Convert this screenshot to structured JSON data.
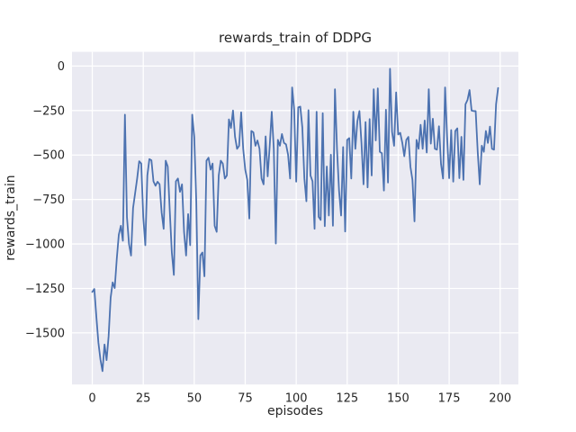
{
  "figure": {
    "background": "#ffffff",
    "plot_background": "#eaeaf2",
    "grid_color": "#ffffff",
    "text_color": "#262626"
  },
  "chart_data": {
    "type": "line",
    "title": "rewards_train of DDPG",
    "xlabel": "episodes",
    "ylabel": "rewards_train",
    "legend": "none",
    "grid": true,
    "style": "seaborn-darkgrid",
    "line_color": "#4c72b0",
    "xlim": [
      -9.95,
      208.95
    ],
    "ylim": [
      -1790,
      80
    ],
    "x_ticks": {
      "values": [
        0,
        25,
        50,
        75,
        100,
        125,
        150,
        175,
        200
      ],
      "labels": [
        "0",
        "25",
        "50",
        "75",
        "100",
        "125",
        "150",
        "175",
        "200"
      ]
    },
    "y_ticks": {
      "values": [
        0,
        -250,
        -500,
        -750,
        -1000,
        -1250,
        -1500
      ],
      "labels": [
        "0",
        "−250",
        "−500",
        "−750",
        "−1000",
        "−1250",
        "−1500"
      ]
    },
    "series": [
      {
        "name": "rewards_train of DDPG",
        "x_mode": "index",
        "x_start": 0,
        "x_step": 1,
        "y": [
          -1270,
          -1253,
          -1410,
          -1555,
          -1650,
          -1715,
          -1565,
          -1653,
          -1520,
          -1302,
          -1216,
          -1248,
          -1085,
          -948,
          -898,
          -982,
          -273,
          -850,
          -1000,
          -1065,
          -798,
          -715,
          -632,
          -535,
          -548,
          -848,
          -1007,
          -615,
          -523,
          -530,
          -648,
          -673,
          -650,
          -665,
          -823,
          -915,
          -532,
          -565,
          -815,
          -1048,
          -1174,
          -648,
          -632,
          -707,
          -665,
          -932,
          -1065,
          -832,
          -1007,
          -273,
          -398,
          -765,
          -1423,
          -1065,
          -1048,
          -1182,
          -532,
          -515,
          -582,
          -548,
          -898,
          -932,
          -615,
          -532,
          -548,
          -632,
          -615,
          -300,
          -348,
          -250,
          -398,
          -465,
          -448,
          -260,
          -465,
          -582,
          -640,
          -857,
          -365,
          -373,
          -448,
          -418,
          -465,
          -632,
          -665,
          -395,
          -620,
          -448,
          -257,
          -465,
          -998,
          -415,
          -448,
          -382,
          -432,
          -440,
          -498,
          -632,
          -120,
          -245,
          -650,
          -232,
          -228,
          -345,
          -632,
          -760,
          -248,
          -615,
          -648,
          -915,
          -257,
          -848,
          -865,
          -265,
          -900,
          -565,
          -840,
          -498,
          -898,
          -130,
          -465,
          -700,
          -840,
          -455,
          -930,
          -415,
          -405,
          -632,
          -257,
          -465,
          -310,
          -253,
          -432,
          -665,
          -315,
          -682,
          -298,
          -615,
          -130,
          -418,
          -125,
          -482,
          -490,
          -700,
          -245,
          -655,
          -15,
          -370,
          -448,
          -148,
          -385,
          -375,
          -430,
          -507,
          -415,
          -398,
          -565,
          -640,
          -873,
          -415,
          -465,
          -330,
          -465,
          -306,
          -486,
          -130,
          -436,
          -296,
          -465,
          -470,
          -338,
          -550,
          -632,
          -120,
          -400,
          -630,
          -360,
          -650,
          -365,
          -350,
          -630,
          -398,
          -640,
          -215,
          -190,
          -135,
          -250,
          -253,
          -253,
          -482,
          -665,
          -448,
          -482,
          -365,
          -432,
          -340,
          -465,
          -470,
          -215,
          -123
        ]
      }
    ]
  }
}
